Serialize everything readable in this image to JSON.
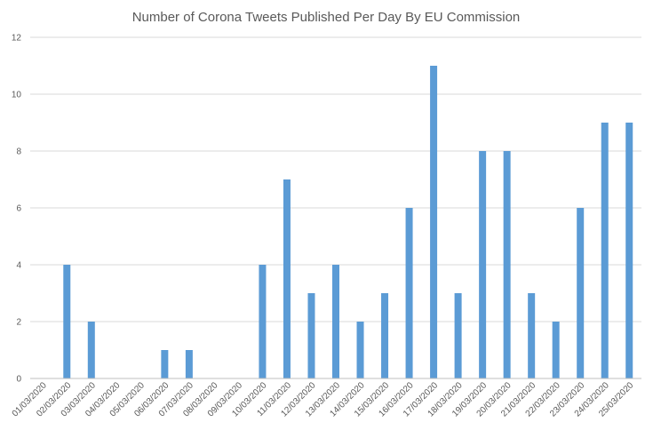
{
  "chart_data": {
    "type": "bar",
    "title": "Number of Corona Tweets Published Per Day By EU Commission",
    "xlabel": "",
    "ylabel": "",
    "ylim": [
      0,
      12
    ],
    "yticks": [
      "0",
      "2",
      "4",
      "6",
      "8",
      "10",
      "12"
    ],
    "grid": true,
    "color": "#5B9BD5",
    "categories": [
      "01/03/2020",
      "02/03/2020",
      "03/03/2020",
      "04/03/2020",
      "05/03/2020",
      "06/03/2020",
      "07/03/2020",
      "08/03/2020",
      "09/03/2020",
      "10/03/2020",
      "11/03/2020",
      "12/03/2020",
      "13/03/2020",
      "14/03/2020",
      "15/03/2020",
      "16/03/2020",
      "17/03/2020",
      "18/03/2020",
      "19/03/2020",
      "20/03/2020",
      "21/03/2020",
      "22/03/2020",
      "23/03/2020",
      "24/03/2020",
      "25/03/2020"
    ],
    "values": [
      0,
      4,
      2,
      0,
      0,
      1,
      1,
      0,
      0,
      4,
      7,
      3,
      4,
      2,
      3,
      6,
      11,
      3,
      8,
      8,
      3,
      2,
      6,
      9,
      9
    ]
  }
}
